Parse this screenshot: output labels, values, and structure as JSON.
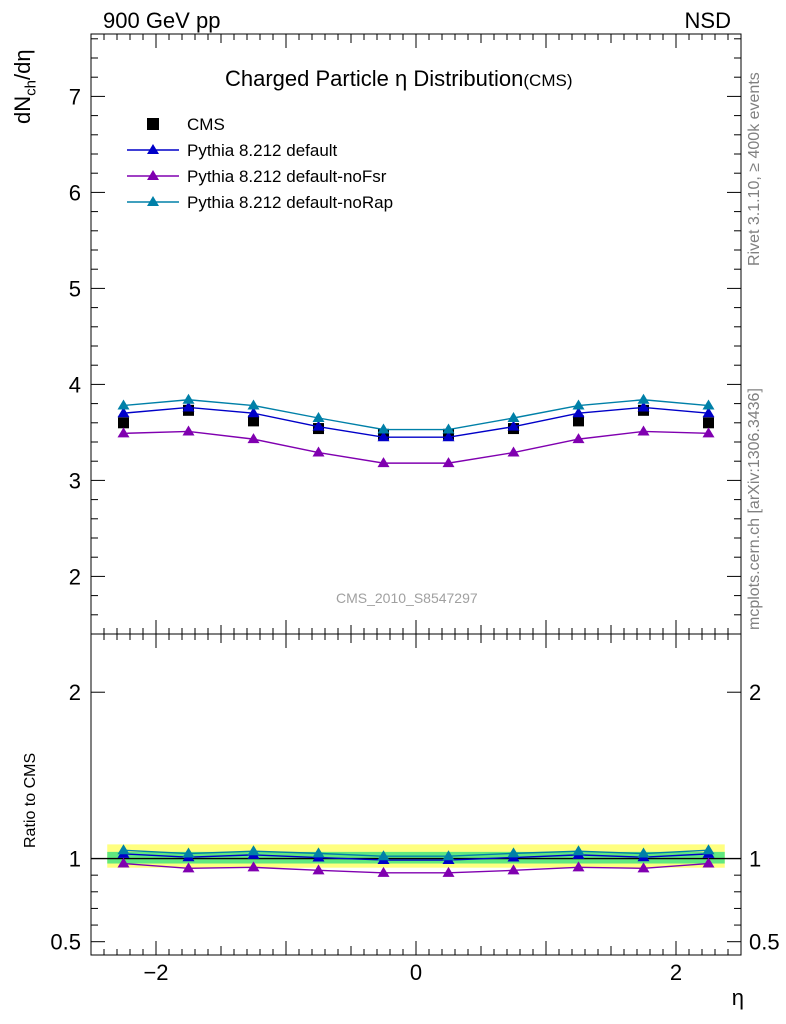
{
  "header": {
    "left": "900 GeV pp",
    "right": "NSD"
  },
  "side_labels": {
    "rivet": "Rivet 3.1.10, ≥ 400k events",
    "mcplots": "mcplots.cern.ch [arXiv:1306.3436]"
  },
  "watermark": "CMS_2010_S8547297",
  "colors": {
    "cms": "#000000",
    "default": "#0000c8",
    "noFsr": "#8000b0",
    "noRap": "#0080a8",
    "band_outer": "#ffff80",
    "band_inner": "#60e880"
  },
  "chart_data": [
    {
      "type": "scatter",
      "title": "Charged Particle η Distribution",
      "subtitle": "(CMS)",
      "xlabel": "η",
      "ylabel": "dN_ch/dη",
      "xlim": [
        -2.5,
        2.5
      ],
      "ylim": [
        1.4,
        7.65
      ],
      "yticks": [
        2,
        3,
        4,
        5,
        6,
        7
      ],
      "legend_position": "top-left",
      "x": [
        -2.25,
        -1.75,
        -1.25,
        -0.75,
        -0.25,
        0.25,
        0.75,
        1.25,
        1.75,
        2.25
      ],
      "series": [
        {
          "name": "CMS",
          "marker": "square",
          "values": [
            3.6,
            3.73,
            3.62,
            3.54,
            3.48,
            3.48,
            3.54,
            3.62,
            3.73,
            3.6
          ]
        },
        {
          "name": "Pythia 8.212 default",
          "marker": "triangle",
          "values": [
            3.7,
            3.76,
            3.7,
            3.56,
            3.45,
            3.45,
            3.56,
            3.7,
            3.76,
            3.7
          ]
        },
        {
          "name": "Pythia 8.212 default-noFsr",
          "marker": "triangle",
          "values": [
            3.49,
            3.51,
            3.43,
            3.29,
            3.18,
            3.18,
            3.29,
            3.43,
            3.51,
            3.49
          ]
        },
        {
          "name": "Pythia 8.212 default-noRap",
          "marker": "triangle",
          "values": [
            3.78,
            3.84,
            3.78,
            3.65,
            3.53,
            3.53,
            3.65,
            3.78,
            3.84,
            3.78
          ]
        }
      ]
    },
    {
      "type": "line",
      "ylabel": "Ratio to CMS",
      "xlabel": "η",
      "xlim": [
        -2.5,
        2.5
      ],
      "ylim": [
        0.42,
        2.35
      ],
      "yticks": [
        0.5,
        1,
        2
      ],
      "xticks": [
        -2,
        0,
        2
      ],
      "x": [
        -2.25,
        -1.75,
        -1.25,
        -0.75,
        -0.25,
        0.25,
        0.75,
        1.25,
        1.75,
        2.25
      ],
      "band_outer": [
        0.945,
        1.085
      ],
      "band_inner": [
        0.97,
        1.04
      ],
      "series": [
        {
          "name": "Pythia 8.212 default",
          "values": [
            1.028,
            1.008,
            1.022,
            1.006,
            0.991,
            0.991,
            1.006,
            1.022,
            1.008,
            1.028
          ]
        },
        {
          "name": "Pythia 8.212 default-noFsr",
          "values": [
            0.97,
            0.941,
            0.947,
            0.929,
            0.914,
            0.914,
            0.929,
            0.947,
            0.941,
            0.97
          ]
        },
        {
          "name": "Pythia 8.212 default-noRap",
          "values": [
            1.05,
            1.03,
            1.044,
            1.031,
            1.014,
            1.014,
            1.031,
            1.044,
            1.03,
            1.05
          ]
        }
      ]
    }
  ]
}
